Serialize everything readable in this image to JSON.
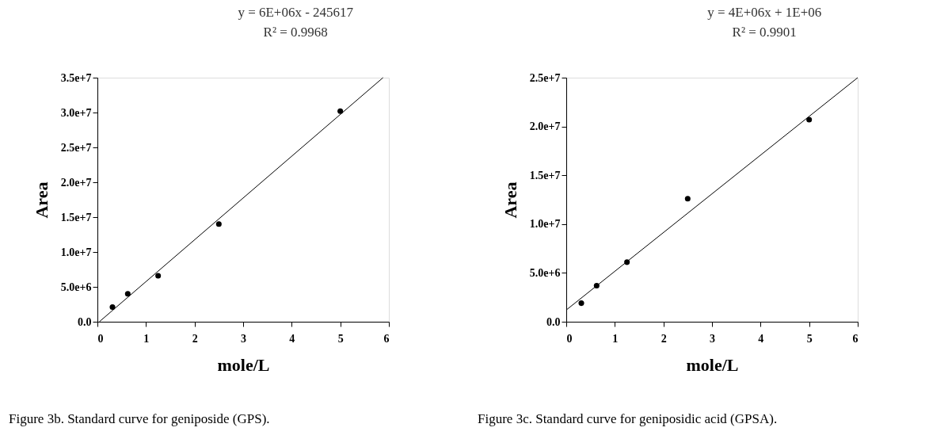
{
  "chart_data": [
    {
      "type": "scatter",
      "xlabel": "mole/L",
      "ylabel": "Area",
      "xlim": [
        0,
        6
      ],
      "xticks": [
        0,
        1,
        2,
        3,
        4,
        5,
        6
      ],
      "ylim": [
        0,
        35000000
      ],
      "yticks": [
        {
          "value": 0,
          "label": "0.0"
        },
        {
          "value": 5000000,
          "label": "5.0e+6"
        },
        {
          "value": 10000000,
          "label": "1.0e+7"
        },
        {
          "value": 15000000,
          "label": "1.5e+7"
        },
        {
          "value": 20000000,
          "label": "2.0e+7"
        },
        {
          "value": 25000000,
          "label": "2.5e+7"
        },
        {
          "value": 30000000,
          "label": "3.0e+7"
        },
        {
          "value": 35000000,
          "label": "3.5e+7"
        }
      ],
      "series": [
        {
          "color": "#000000",
          "marker": "circle",
          "x": [
            0.31,
            0.625,
            1.25,
            2.5,
            5
          ],
          "values": [
            2100000,
            4000000,
            6600000,
            14000000,
            30200000
          ]
        },
        {
          "type": "line",
          "color": "#000000",
          "line_style": "solid",
          "x": [
            0.04,
            5.88
          ],
          "values": [
            0,
            35000000
          ]
        }
      ],
      "grid": false,
      "annotations": [
        "y = 6E+06x - 245617",
        "R² = 0.9968",
        "Figure 3b. Standard curve for geniposide (GPS)."
      ]
    },
    {
      "type": "scatter",
      "xlabel": "mole/L",
      "ylabel": "Area",
      "xlim": [
        0,
        6
      ],
      "xticks": [
        0,
        1,
        2,
        3,
        4,
        5,
        6
      ],
      "ylim": [
        0,
        25000000
      ],
      "yticks": [
        {
          "value": 0,
          "label": "0.0"
        },
        {
          "value": 5000000,
          "label": "5.0e+6"
        },
        {
          "value": 10000000,
          "label": "1.0e+7"
        },
        {
          "value": 15000000,
          "label": "1.5e+7"
        },
        {
          "value": 20000000,
          "label": "2.0e+7"
        },
        {
          "value": 25000000,
          "label": "2.5e+7"
        }
      ],
      "series": [
        {
          "color": "#000000",
          "marker": "circle",
          "x": [
            0.31,
            0.625,
            1.25,
            2.5,
            5
          ],
          "values": [
            1900000,
            3700000,
            6100000,
            12600000,
            20700000
          ]
        },
        {
          "type": "line",
          "color": "#000000",
          "line_style": "solid",
          "x": [
            0,
            6
          ],
          "values": [
            1200000,
            25000000
          ]
        }
      ],
      "grid": false,
      "annotations": [
        "y = 4E+06x + 1E+06",
        "R² = 0.9901",
        "Figure 3c. Standard curve for geniposidic acid (GPSA)."
      ]
    }
  ]
}
